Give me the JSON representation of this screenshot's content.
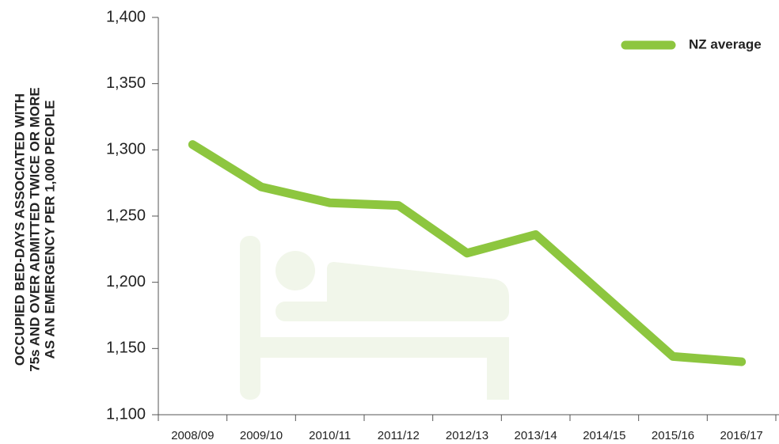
{
  "chart_data": {
    "type": "line",
    "ylabel_lines": [
      "OCCUPIED BED-DAYS ASSOCIATED WITH",
      "75s AND OVER ADMITTED TWICE OR MORE",
      "AS AN EMERGENCY PER 1,000 PEOPLE"
    ],
    "categories": [
      "2008/09",
      "2009/10",
      "2010/11",
      "2011/12",
      "2012/13",
      "2013/14",
      "2014/15",
      "2015/16",
      "2016/17"
    ],
    "series": [
      {
        "name": "NZ average",
        "color": "#8dc63f",
        "values": [
          1304,
          1272,
          1260,
          1258,
          1222,
          1236,
          1190,
          1144,
          1140
        ]
      }
    ],
    "ylim": [
      1100,
      1400
    ],
    "yticks": [
      {
        "value": 1100,
        "label": "1,100"
      },
      {
        "value": 1150,
        "label": "1,150"
      },
      {
        "value": 1200,
        "label": "1,200"
      },
      {
        "value": 1250,
        "label": "1,250"
      },
      {
        "value": 1300,
        "label": "1,300"
      },
      {
        "value": 1350,
        "label": "1,350"
      },
      {
        "value": 1400,
        "label": "1,400"
      }
    ],
    "legend": "top-right",
    "grid": false
  }
}
